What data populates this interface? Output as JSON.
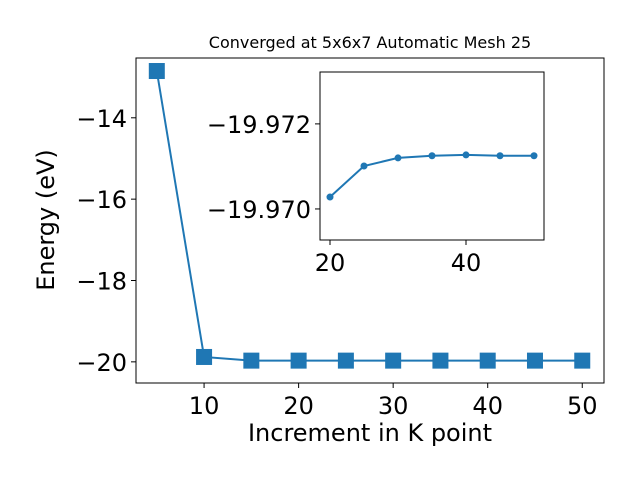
{
  "chart_data": [
    {
      "type": "line",
      "title": "Converged at 5x6x7 Automatic Mesh 25",
      "x_label": "Increment in K point",
      "y_label": "Energy (eV)",
      "x": [
        5,
        10,
        15,
        20,
        25,
        30,
        35,
        40,
        45,
        50
      ],
      "series": [
        {
          "color": "#1f77b4",
          "marker": "square",
          "values": [
            -12.85,
            -19.88,
            -19.97,
            -19.97,
            -19.97,
            -19.97,
            -19.97,
            -19.97,
            -19.97,
            -19.97
          ]
        }
      ],
      "xlim": [
        2.8,
        52.3
      ],
      "xticks": [
        10,
        20,
        30,
        40,
        50
      ],
      "ylim": [
        -20.52,
        -12.53
      ],
      "yticks": [
        {
          "value": -20,
          "label": "−20"
        },
        {
          "value": -18,
          "label": "−18"
        },
        {
          "value": -16,
          "label": "−16"
        },
        {
          "value": -14,
          "label": "−14"
        }
      ],
      "y_inverted": false
    },
    {
      "type": "line",
      "x": [
        20,
        25,
        30,
        35,
        40,
        45,
        50
      ],
      "series": [
        {
          "color": "#1f77b4",
          "marker": "circle",
          "values": [
            -19.97028,
            -19.97101,
            -19.9712,
            -19.97125,
            -19.97127,
            -19.97125,
            -19.97125
          ]
        }
      ],
      "xlim": [
        18.53,
        51.47
      ],
      "xticks": [
        20,
        40
      ],
      "ylim": [
        -19.97322,
        -19.96927
      ],
      "yticks": [
        {
          "value": -19.972,
          "label": "−19.972"
        },
        {
          "value": -19.97,
          "label": "−19.970"
        }
      ],
      "y_inverted": true
    }
  ]
}
